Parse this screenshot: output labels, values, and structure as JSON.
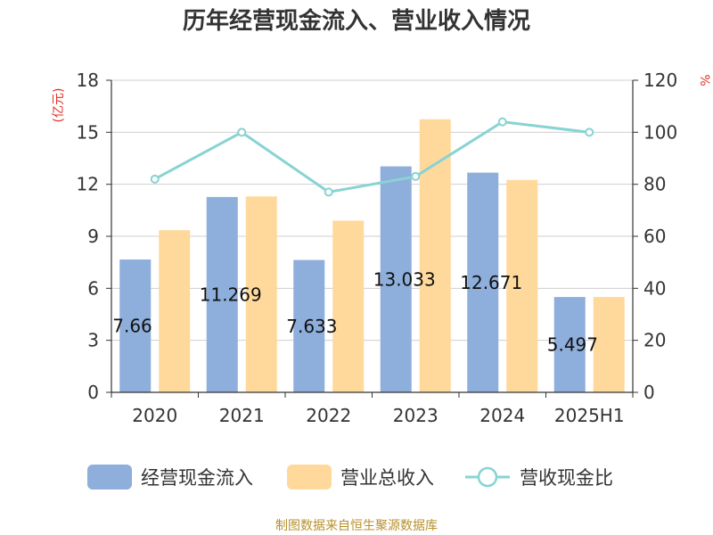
{
  "chart_data": {
    "type": "bar",
    "title": "历年经营现金流入、营业收入情况",
    "categories": [
      "2020",
      "2021",
      "2022",
      "2023",
      "2024",
      "2025H1"
    ],
    "series": [
      {
        "name": "经营现金流入",
        "type": "bar",
        "axis": "left",
        "color": "#8eaedb",
        "values": [
          7.66,
          11.269,
          7.633,
          13.033,
          12.671,
          5.497
        ],
        "labels": [
          "7.66",
          "11.269",
          "7.633",
          "13.033",
          "12.671",
          "5.497"
        ]
      },
      {
        "name": "营业总收入",
        "type": "bar",
        "axis": "left",
        "color": "#fed99b",
        "values": [
          9.35,
          11.3,
          9.9,
          15.75,
          12.25,
          5.5
        ]
      },
      {
        "name": "营收现金比",
        "type": "line",
        "axis": "right",
        "color": "#88d3d3",
        "values": [
          82,
          100,
          77,
          83,
          104,
          100
        ]
      }
    ],
    "y_left": {
      "label": "(亿元)",
      "ylim": [
        0,
        18
      ],
      "ticks": [
        0,
        3,
        6,
        9,
        12,
        15,
        18
      ]
    },
    "y_right": {
      "label": "%",
      "ylim": [
        0,
        120
      ],
      "ticks": [
        0,
        20,
        40,
        60,
        80,
        100,
        120
      ]
    },
    "grid": true,
    "legend": "bottom"
  },
  "footer": {
    "source": "制图数据来自恒生聚源数据库"
  }
}
